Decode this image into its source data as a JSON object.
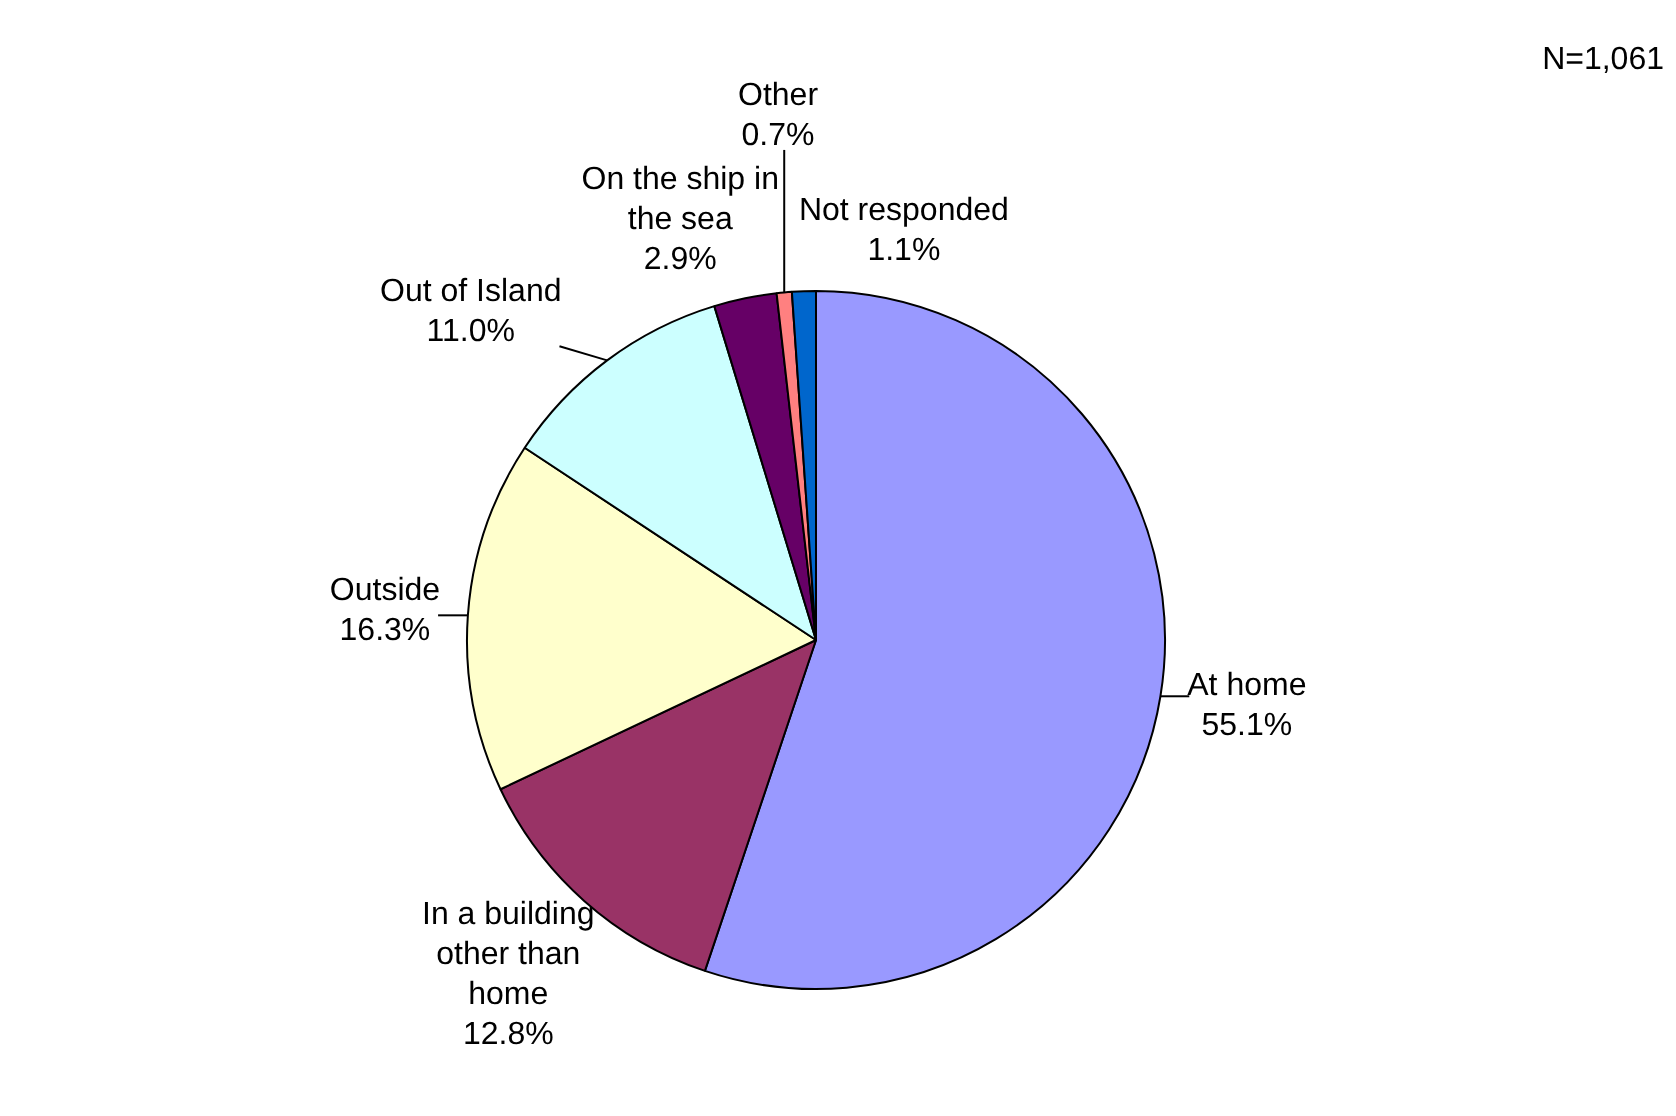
{
  "chart_data": {
    "type": "pie",
    "categories": [
      "At home",
      "In a building other than home",
      "Outside",
      "Out of Island",
      "On the ship in the sea",
      "Other",
      "Not responded"
    ],
    "values": [
      55.1,
      12.8,
      16.3,
      11.0,
      2.9,
      0.7,
      1.1
    ],
    "value_labels": [
      "55.1%",
      "12.8%",
      "16.3%",
      "11.0%",
      "2.9%",
      "0.7%",
      "1.1%"
    ],
    "colors": [
      "#9999ff",
      "#993366",
      "#ffffcc",
      "#ccffff",
      "#660066",
      "#ff8080",
      "#0066cc"
    ],
    "annotations": [
      "N=1,061"
    ],
    "legend": false
  }
}
